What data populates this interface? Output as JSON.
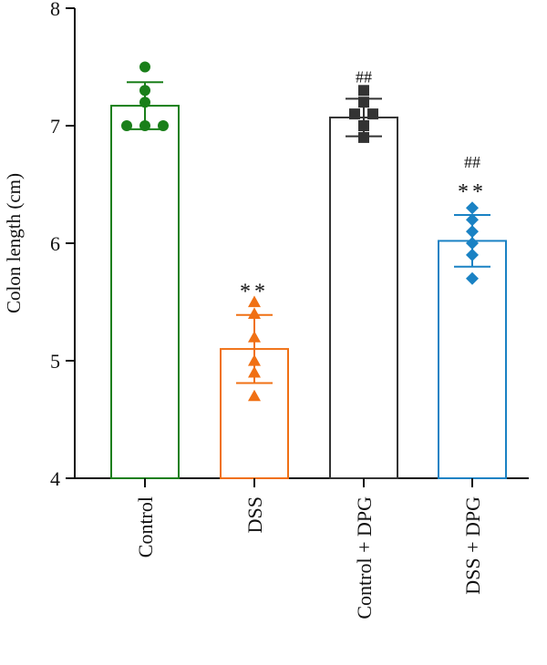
{
  "chart_data": {
    "type": "bar",
    "title": "",
    "xlabel": "",
    "ylabel": "Colon length (cm)",
    "ylim": [
      4,
      8
    ],
    "yticks": [
      4,
      5,
      6,
      7,
      8
    ],
    "ytick_labels": [
      "4",
      "5",
      "6",
      "7",
      "8"
    ],
    "categories": [
      "Control",
      "DSS",
      "Control + DPG",
      "DSS + DPG"
    ],
    "values": [
      7.17,
      5.1,
      7.07,
      6.02
    ],
    "error": [
      0.2,
      0.29,
      0.16,
      0.22
    ],
    "points": [
      [
        7.5,
        7.3,
        7.2,
        7.0,
        7.0,
        7.0
      ],
      [
        5.5,
        5.4,
        5.2,
        5.0,
        4.9,
        4.7
      ],
      [
        7.3,
        7.2,
        7.1,
        7.1,
        7.0,
        6.9
      ],
      [
        6.3,
        6.2,
        6.1,
        6.0,
        5.9,
        5.7
      ]
    ],
    "markers": [
      "circle",
      "triangle",
      "square",
      "diamond"
    ],
    "colors": [
      "#1a7f1a",
      "#f07014",
      "#333333",
      "#1a82c4"
    ],
    "annotations": [
      {
        "group": 1,
        "lines": [
          "**"
        ]
      },
      {
        "group": 2,
        "lines": [
          "##"
        ]
      },
      {
        "group": 3,
        "lines": [
          "##",
          "**"
        ]
      }
    ],
    "grid": false,
    "legend": "none"
  }
}
